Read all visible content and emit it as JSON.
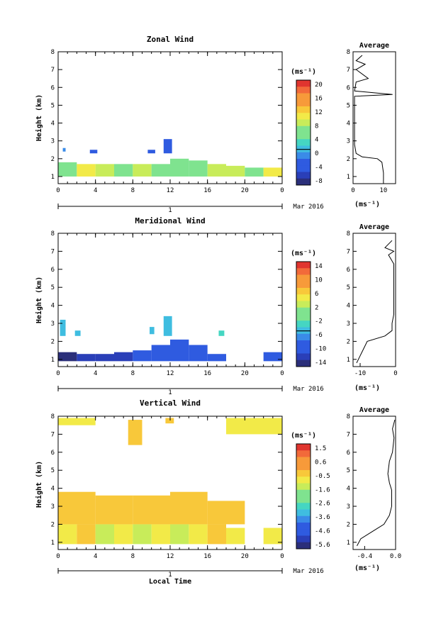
{
  "panels": [
    {
      "title": "Zonal Wind",
      "ylabel": "Height (km)",
      "units": "(ms⁻¹)",
      "date_label": "Mar 2016",
      "day_label": "1",
      "average_title": "Average",
      "average_units": "(ms⁻¹)",
      "colorbar_ticks": [
        "20",
        "16",
        "12",
        "8",
        "4",
        "0",
        "-4",
        "-8"
      ]
    },
    {
      "title": "Meridional Wind",
      "ylabel": "Height (km)",
      "units": "(ms⁻¹)",
      "date_label": "Mar 2016",
      "day_label": "1",
      "average_title": "Average",
      "average_units": "(ms⁻¹)",
      "colorbar_ticks": [
        "14",
        "10",
        "6",
        "2",
        "-2",
        "-6",
        "-10",
        "-14"
      ]
    },
    {
      "title": "Vertical Wind",
      "ylabel": "Height (km)",
      "units": "(ms⁻¹)",
      "date_label": "Mar 2016",
      "day_label": "1",
      "xlabel": "Local Time",
      "average_title": "Average",
      "average_units": "(ms⁻¹)",
      "colorbar_ticks": [
        "1.5",
        "0.6",
        "-0.5",
        "-1.6",
        "-2.6",
        "-3.6",
        "-4.6",
        "-5.6"
      ]
    }
  ],
  "chart_data": [
    {
      "type": "heatmap",
      "name": "zonal",
      "title": "Zonal Wind",
      "xlabel": "",
      "ylabel": "Height (km)",
      "x_ticks": [
        "0",
        "4",
        "8",
        "12",
        "16",
        "20",
        "0"
      ],
      "y_ticks": [
        "1",
        "2",
        "3",
        "4",
        "5",
        "6",
        "7",
        "8"
      ],
      "xlim": [
        0,
        24
      ],
      "ylim": [
        0.6,
        8
      ],
      "clim": [
        -10,
        22
      ],
      "cells": [
        [
          0,
          2,
          1.0,
          1.8,
          7
        ],
        [
          2,
          4,
          1.0,
          1.7,
          10
        ],
        [
          4,
          6,
          1.0,
          1.7,
          8
        ],
        [
          6,
          8,
          1.0,
          1.7,
          6
        ],
        [
          8,
          10,
          1.0,
          1.7,
          8
        ],
        [
          10,
          12,
          1.0,
          1.7,
          7
        ],
        [
          12,
          14,
          1.0,
          2.0,
          5
        ],
        [
          14,
          16,
          1.0,
          1.9,
          6
        ],
        [
          16,
          18,
          1.0,
          1.7,
          8
        ],
        [
          18,
          20,
          1.0,
          1.6,
          9
        ],
        [
          20,
          22,
          1.0,
          1.5,
          7
        ],
        [
          22,
          24,
          1.0,
          1.5,
          10
        ],
        [
          0.5,
          0.8,
          2.4,
          2.6,
          -2
        ],
        [
          3.4,
          4.2,
          2.3,
          2.5,
          -3
        ],
        [
          9.6,
          10.4,
          2.3,
          2.5,
          -3
        ],
        [
          11.3,
          12.2,
          2.3,
          3.1,
          -4
        ]
      ],
      "average": {
        "xlim": [
          0,
          14
        ],
        "x_ticks": [
          "0",
          "10"
        ],
        "points": [
          [
            10,
            0.8
          ],
          [
            10,
            1.2
          ],
          [
            9.5,
            1.8
          ],
          [
            8,
            2.0
          ],
          [
            3,
            2.1
          ],
          [
            1,
            2.3
          ],
          [
            0.5,
            2.8
          ],
          [
            0.5,
            3.5
          ],
          [
            0.5,
            5.5
          ],
          [
            13,
            5.6
          ],
          [
            0.5,
            5.8
          ],
          [
            1,
            6.3
          ],
          [
            5,
            6.5
          ],
          [
            1,
            7.0
          ],
          [
            4,
            7.3
          ],
          [
            1,
            7.5
          ],
          [
            3,
            7.8
          ]
        ]
      }
    },
    {
      "type": "heatmap",
      "name": "meridional",
      "title": "Meridional Wind",
      "xlabel": "",
      "ylabel": "Height (km)",
      "x_ticks": [
        "0",
        "4",
        "8",
        "12",
        "16",
        "20",
        "0"
      ],
      "y_ticks": [
        "1",
        "2",
        "3",
        "4",
        "5",
        "6",
        "7",
        "8"
      ],
      "xlim": [
        0,
        24
      ],
      "ylim": [
        0.6,
        8
      ],
      "clim": [
        -16,
        16
      ],
      "cells": [
        [
          0,
          2,
          0.9,
          1.4,
          -14
        ],
        [
          2,
          4,
          0.9,
          1.3,
          -13
        ],
        [
          4,
          6,
          0.9,
          1.3,
          -12
        ],
        [
          6,
          8,
          0.9,
          1.4,
          -12
        ],
        [
          8,
          10,
          0.9,
          1.5,
          -11
        ],
        [
          10,
          12,
          0.9,
          1.8,
          -10
        ],
        [
          12,
          14,
          0.9,
          2.1,
          -9
        ],
        [
          14,
          16,
          0.9,
          1.8,
          -10
        ],
        [
          16,
          18,
          0.9,
          1.3,
          -11
        ],
        [
          22,
          24,
          0.9,
          1.4,
          -9
        ],
        [
          0.2,
          0.8,
          2.3,
          3.2,
          -4
        ],
        [
          1.8,
          2.4,
          2.3,
          2.6,
          -4
        ],
        [
          9.8,
          10.3,
          2.4,
          2.8,
          -4
        ],
        [
          11.3,
          12.2,
          2.3,
          3.4,
          -4
        ],
        [
          17.2,
          17.8,
          2.3,
          2.6,
          -3
        ]
      ],
      "average": {
        "xlim": [
          -12,
          0
        ],
        "x_ticks": [
          "-10",
          "0"
        ],
        "points": [
          [
            -11,
            0.8
          ],
          [
            -10,
            1.2
          ],
          [
            -9,
            1.6
          ],
          [
            -8,
            2.0
          ],
          [
            -3,
            2.3
          ],
          [
            -1,
            2.6
          ],
          [
            -1,
            3.0
          ],
          [
            -0.5,
            3.5
          ],
          [
            -0.5,
            6.3
          ],
          [
            -2,
            6.8
          ],
          [
            -0.5,
            7.0
          ],
          [
            -3,
            7.2
          ],
          [
            -1,
            7.6
          ]
        ]
      }
    },
    {
      "type": "heatmap",
      "name": "vertical",
      "title": "Vertical Wind",
      "xlabel": "Local Time",
      "ylabel": "Height (km)",
      "x_ticks": [
        "0",
        "4",
        "8",
        "12",
        "16",
        "20",
        "0"
      ],
      "y_ticks": [
        "1",
        "2",
        "3",
        "4",
        "5",
        "6",
        "7",
        "8"
      ],
      "xlim": [
        0,
        24
      ],
      "ylim": [
        0.6,
        8
      ],
      "clim": [
        -6,
        2
      ],
      "cells": [
        [
          0,
          2,
          0.9,
          2.0,
          -1.0
        ],
        [
          2,
          4,
          0.9,
          2.0,
          -0.3
        ],
        [
          4,
          6,
          0.9,
          2.0,
          -1.2
        ],
        [
          6,
          8,
          0.9,
          2.0,
          -0.8
        ],
        [
          8,
          10,
          0.9,
          2.0,
          -1.1
        ],
        [
          10,
          12,
          0.9,
          2.0,
          -0.9
        ],
        [
          12,
          14,
          0.9,
          2.0,
          -1.2
        ],
        [
          14,
          16,
          0.9,
          2.0,
          -0.8
        ],
        [
          16,
          18,
          0.9,
          2.0,
          -0.4
        ],
        [
          18,
          20,
          0.9,
          1.8,
          -0.6
        ],
        [
          22,
          24,
          0.9,
          1.8,
          -0.7
        ],
        [
          0,
          4,
          2.0,
          3.8,
          -0.2
        ],
        [
          4,
          8,
          2.0,
          3.6,
          -0.2
        ],
        [
          8,
          12,
          2.0,
          3.6,
          0.0
        ],
        [
          12,
          16,
          2.0,
          3.8,
          -0.1
        ],
        [
          16,
          20,
          2.0,
          3.3,
          -0.3
        ],
        [
          7.5,
          9,
          6.4,
          7.8,
          -0.1
        ],
        [
          11.5,
          12.4,
          7.6,
          7.9,
          -0.1
        ],
        [
          0,
          4,
          7.5,
          7.9,
          -0.8
        ],
        [
          18,
          24,
          7.0,
          7.9,
          -0.8
        ]
      ],
      "average": {
        "xlim": [
          -0.55,
          0
        ],
        "x_ticks": [
          "-0.4",
          "0.0"
        ],
        "points": [
          [
            -0.5,
            0.8
          ],
          [
            -0.45,
            1.2
          ],
          [
            -0.3,
            1.6
          ],
          [
            -0.15,
            2.0
          ],
          [
            -0.08,
            2.5
          ],
          [
            -0.05,
            3.0
          ],
          [
            -0.05,
            3.9
          ],
          [
            -0.08,
            4.3
          ],
          [
            -0.1,
            4.8
          ],
          [
            -0.08,
            5.5
          ],
          [
            -0.04,
            6.0
          ],
          [
            -0.02,
            6.8
          ],
          [
            -0.04,
            7.3
          ],
          [
            -0.01,
            7.8
          ]
        ]
      }
    }
  ]
}
